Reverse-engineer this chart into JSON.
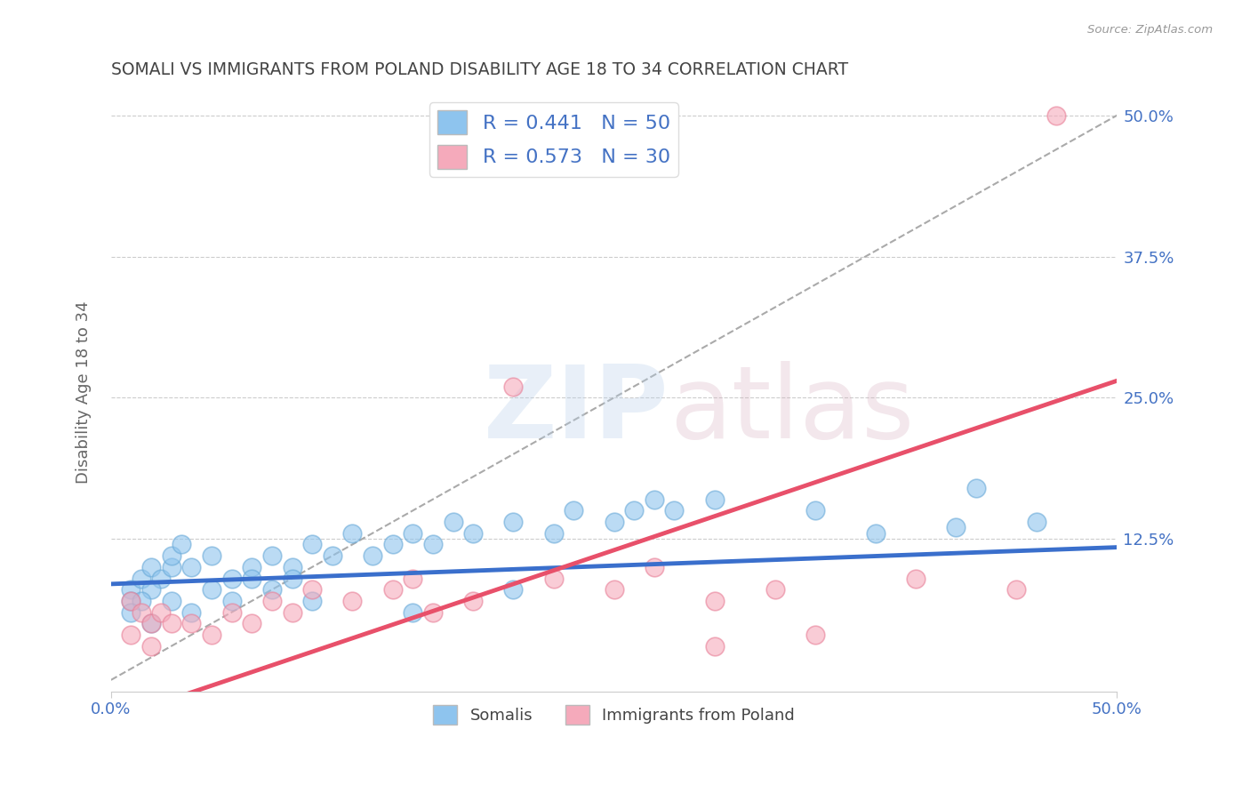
{
  "title": "SOMALI VS IMMIGRANTS FROM POLAND DISABILITY AGE 18 TO 34 CORRELATION CHART",
  "source": "Source: ZipAtlas.com",
  "ylabel": "Disability Age 18 to 34",
  "xlim": [
    0.0,
    0.5
  ],
  "ylim": [
    -0.01,
    0.52
  ],
  "ytick_labels": [
    "12.5%",
    "25.0%",
    "37.5%",
    "50.0%"
  ],
  "ytick_vals": [
    0.125,
    0.25,
    0.375,
    0.5
  ],
  "xtick_vals": [
    0.0,
    0.5
  ],
  "xtick_labels": [
    "0.0%",
    "50.0%"
  ],
  "somali_R": 0.441,
  "somali_N": 50,
  "poland_R": 0.573,
  "poland_N": 30,
  "somali_color": "#8EC4EE",
  "somali_edge_color": "#6AAAD8",
  "poland_color": "#F5AABB",
  "poland_edge_color": "#E88098",
  "somali_line_color": "#3A6FCC",
  "poland_line_color": "#E8506A",
  "legend_label_1": "Somalis",
  "legend_label_2": "Immigrants from Poland",
  "background_color": "#ffffff",
  "grid_color": "#cccccc",
  "title_color": "#444444",
  "axis_label_color": "#4472C4",
  "somali_slope": 0.065,
  "somali_intercept": 0.085,
  "poland_slope": 0.6,
  "poland_intercept": -0.035,
  "somali_points_x": [
    0.01,
    0.015,
    0.02,
    0.025,
    0.01,
    0.03,
    0.02,
    0.015,
    0.03,
    0.04,
    0.035,
    0.05,
    0.06,
    0.07,
    0.08,
    0.09,
    0.1,
    0.11,
    0.12,
    0.13,
    0.14,
    0.15,
    0.16,
    0.17,
    0.18,
    0.2,
    0.22,
    0.23,
    0.25,
    0.26,
    0.27,
    0.28,
    0.3,
    0.01,
    0.02,
    0.03,
    0.04,
    0.05,
    0.06,
    0.07,
    0.08,
    0.09,
    0.1,
    0.15,
    0.2,
    0.35,
    0.38,
    0.42,
    0.43,
    0.46
  ],
  "somali_points_y": [
    0.08,
    0.09,
    0.1,
    0.09,
    0.07,
    0.1,
    0.08,
    0.07,
    0.11,
    0.1,
    0.12,
    0.11,
    0.09,
    0.1,
    0.11,
    0.1,
    0.12,
    0.11,
    0.13,
    0.11,
    0.12,
    0.13,
    0.12,
    0.14,
    0.13,
    0.14,
    0.13,
    0.15,
    0.14,
    0.15,
    0.16,
    0.15,
    0.16,
    0.06,
    0.05,
    0.07,
    0.06,
    0.08,
    0.07,
    0.09,
    0.08,
    0.09,
    0.07,
    0.06,
    0.08,
    0.15,
    0.13,
    0.135,
    0.17,
    0.14
  ],
  "poland_points_x": [
    0.01,
    0.015,
    0.02,
    0.025,
    0.01,
    0.03,
    0.02,
    0.04,
    0.05,
    0.06,
    0.07,
    0.08,
    0.09,
    0.1,
    0.12,
    0.14,
    0.15,
    0.16,
    0.18,
    0.22,
    0.25,
    0.27,
    0.3,
    0.33,
    0.2,
    0.47,
    0.3,
    0.35,
    0.4,
    0.45
  ],
  "poland_points_y": [
    0.07,
    0.06,
    0.05,
    0.06,
    0.04,
    0.05,
    0.03,
    0.05,
    0.04,
    0.06,
    0.05,
    0.07,
    0.06,
    0.08,
    0.07,
    0.08,
    0.09,
    0.06,
    0.07,
    0.09,
    0.08,
    0.1,
    0.07,
    0.08,
    0.26,
    0.5,
    0.03,
    0.04,
    0.09,
    0.08
  ]
}
